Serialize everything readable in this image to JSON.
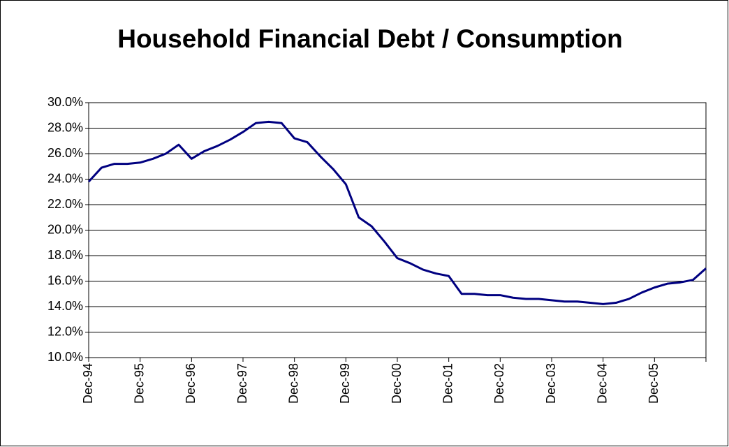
{
  "chart_data": {
    "type": "line",
    "title": "Household Financial Debt / Consumption",
    "categories": [
      "Dec-94",
      null,
      null,
      null,
      "Dec-95",
      null,
      null,
      null,
      "Dec-96",
      null,
      null,
      null,
      "Dec-97",
      null,
      null,
      null,
      "Dec-98",
      null,
      null,
      null,
      "Dec-99",
      null,
      null,
      null,
      "Dec-00",
      null,
      null,
      null,
      "Dec-01",
      null,
      null,
      null,
      "Dec-02",
      null,
      null,
      null,
      "Dec-03",
      null,
      null,
      null,
      "Dec-04",
      null,
      null,
      null,
      "Dec-05",
      null,
      null,
      null,
      null
    ],
    "series": [
      {
        "color": "#000080",
        "values": [
          23.8,
          24.9,
          25.2,
          25.2,
          25.3,
          25.6,
          26.0,
          26.7,
          25.6,
          26.2,
          26.6,
          27.1,
          27.7,
          28.4,
          28.5,
          28.4,
          27.2,
          26.9,
          25.8,
          24.8,
          23.6,
          21.0,
          20.3,
          19.1,
          17.8,
          17.4,
          16.9,
          16.6,
          16.4,
          15.0,
          15.0,
          14.9,
          14.9,
          14.7,
          14.6,
          14.6,
          14.5,
          14.4,
          14.4,
          14.3,
          14.2,
          14.3,
          14.6,
          15.1,
          15.5,
          15.8,
          15.9,
          16.1,
          17.0
        ]
      }
    ],
    "ylim": [
      10,
      30
    ],
    "yticks": [
      {
        "value": 10,
        "label": "10.0%"
      },
      {
        "value": 12,
        "label": "12.0%"
      },
      {
        "value": 14,
        "label": "14.0%"
      },
      {
        "value": 16,
        "label": "16.0%"
      },
      {
        "value": 18,
        "label": "18.0%"
      },
      {
        "value": 20,
        "label": "20.0%"
      },
      {
        "value": 22,
        "label": "22.0%"
      },
      {
        "value": 24,
        "label": "24.0%"
      },
      {
        "value": 26,
        "label": "26.0%"
      },
      {
        "value": 28,
        "label": "28.0%"
      },
      {
        "value": 30,
        "label": "30.0%"
      }
    ],
    "grid": true
  }
}
